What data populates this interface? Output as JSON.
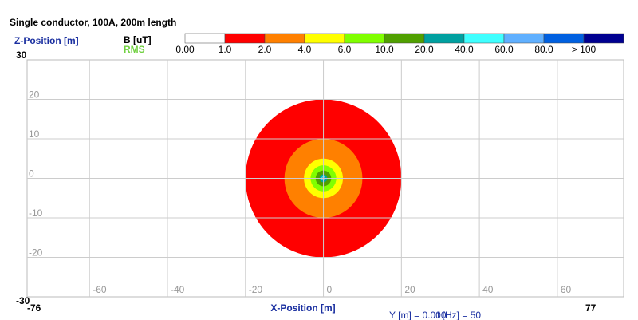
{
  "chart_data": {
    "type": "contour",
    "title": "Single conductor, 100A, 200m length",
    "xlabel": "X-Position [m]",
    "ylabel": "Z-Position [m]",
    "legend_title": "B [uT]",
    "legend_subtitle": "RMS",
    "footer": [
      "Y [m] = 0.000",
      "f [Hz] = 50"
    ],
    "xlim": [
      -76,
      77
    ],
    "ylim": [
      -30,
      30
    ],
    "xticks": [
      -60,
      -40,
      -20,
      0,
      20,
      40,
      60
    ],
    "yticks": [
      20,
      10,
      0,
      -10,
      -20
    ],
    "grid": true,
    "center": [
      0,
      0
    ],
    "levels": [
      {
        "value": 0,
        "label": "0.00",
        "color": "#ffffff"
      },
      {
        "value": 1,
        "label": "1.0",
        "color": "#ff0000",
        "radius": 20
      },
      {
        "value": 2,
        "label": "2.0",
        "color": "#ff8000",
        "radius": 10
      },
      {
        "value": 4,
        "label": "4.0",
        "color": "#ffff00",
        "radius": 5
      },
      {
        "value": 6,
        "label": "6.0",
        "color": "#80ff00",
        "radius": 3.3
      },
      {
        "value": 10,
        "label": "10.0",
        "color": "#50a000",
        "radius": 2
      },
      {
        "value": 20,
        "label": "20.0",
        "color": "#00a0a0",
        "radius": 1
      },
      {
        "value": 40,
        "label": "40.0",
        "color": "#40ffff",
        "radius": 0.5
      },
      {
        "value": 60,
        "label": "60.0",
        "color": "#60b0ff",
        "radius": 0.33
      },
      {
        "value": 80,
        "label": "80.0",
        "color": "#0060e0",
        "radius": 0.25
      },
      {
        "value": 100,
        "label": "> 100",
        "color": "#000090",
        "radius": 0.2
      }
    ]
  }
}
